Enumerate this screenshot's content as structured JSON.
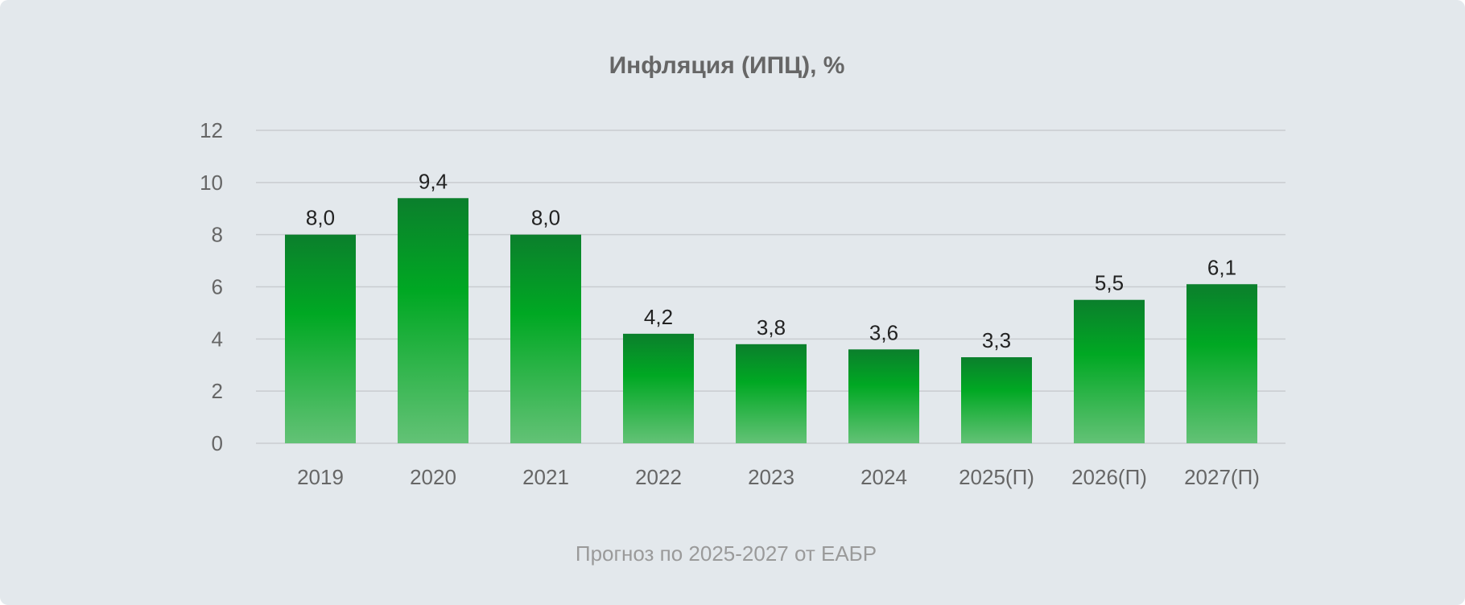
{
  "colors": {
    "background": "#e3e8ec",
    "bar_top": "#0b7f2c",
    "bar_mid": "#00a823",
    "bar_bottom": "#63c276",
    "grid": "#c9ccd0"
  },
  "chart_data": {
    "type": "bar",
    "title": "Инфляция (ИПЦ), %",
    "xlabel": "",
    "ylabel": "",
    "categories": [
      "2019",
      "2020",
      "2021",
      "2022",
      "2023",
      "2024",
      "2025(П)",
      "2026(П)",
      "2027(П)"
    ],
    "values": [
      8.0,
      9.4,
      8.0,
      4.2,
      3.8,
      3.6,
      3.3,
      5.5,
      6.1
    ],
    "value_labels": [
      "8,0",
      "9,4",
      "8,0",
      "4,2",
      "3,8",
      "3,6",
      "3,3",
      "5,5",
      "6,1"
    ],
    "ylim": [
      0,
      12
    ],
    "yticks": [
      "0",
      "2",
      "4",
      "6",
      "8",
      "10",
      "12"
    ],
    "grid": true,
    "legend": "none",
    "note": "Прогноз по 2025-2027 от ЕАБР"
  }
}
